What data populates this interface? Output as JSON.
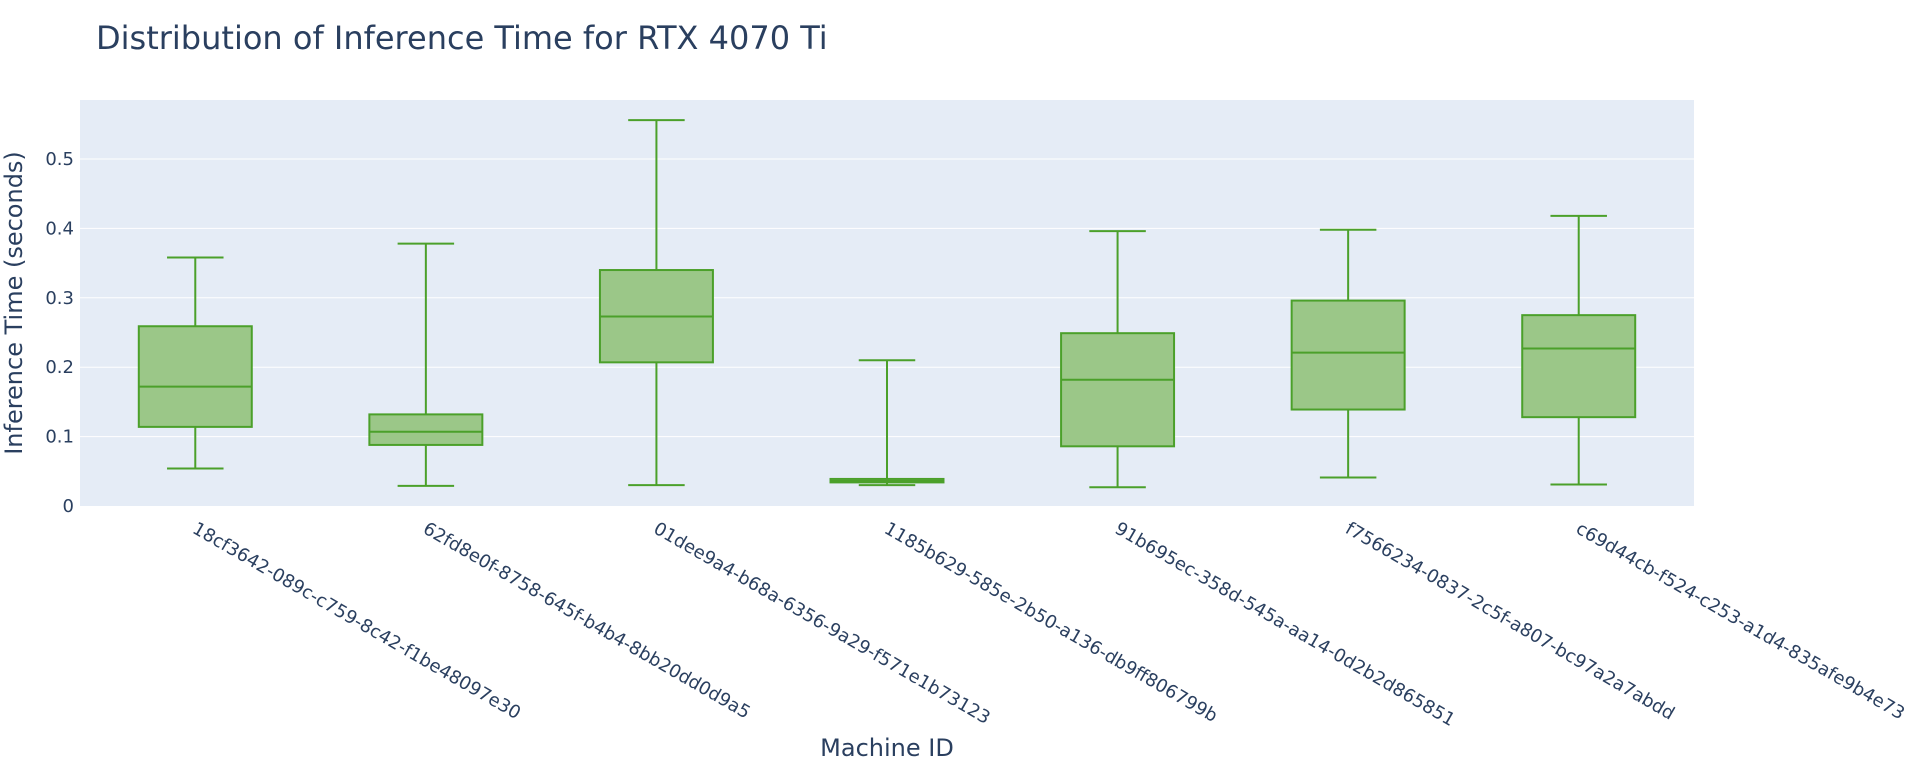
{
  "chart_data": {
    "type": "box",
    "title": "Distribution of Inference Time for RTX 4070 Ti",
    "xlabel": "Machine ID",
    "ylabel": "Inference Time (seconds)",
    "ylim": [
      0,
      0.585
    ],
    "yticks": [
      0,
      0.1,
      0.2,
      0.3,
      0.4,
      0.5
    ],
    "ytick_labels": [
      "0",
      "0.1",
      "0.2",
      "0.3",
      "0.4",
      "0.5"
    ],
    "grid": true,
    "legend": "none",
    "colors": {
      "plot_bg": "#e5ecf6",
      "box_fill": "#9bc788",
      "box_line": "#4ba02a",
      "text": "#2a3f5f"
    },
    "categories": [
      "18cf3642-089c-c759-8c42-f1be48097e30",
      "62fd8e0f-8758-645f-b4b4-8bb20dd0d9a5",
      "01dee9a4-b68a-6356-9a29-f571e1b73123",
      "1185b629-585e-2b50-a136-db9ff806799b",
      "91b695ec-358d-545a-aa14-0d2b2d865851",
      "f7566234-0837-2c5f-a807-bc97a2a7abdd",
      "c69d44cb-f524-c253-a1d4-835afe9b4e73"
    ],
    "boxes": [
      {
        "min": 0.054,
        "q1": 0.114,
        "median": 0.172,
        "q3": 0.259,
        "max": 0.358
      },
      {
        "min": 0.029,
        "q1": 0.088,
        "median": 0.107,
        "q3": 0.132,
        "max": 0.378
      },
      {
        "min": 0.03,
        "q1": 0.207,
        "median": 0.273,
        "q3": 0.34,
        "max": 0.556
      },
      {
        "min": 0.03,
        "q1": 0.034,
        "median": 0.036,
        "q3": 0.039,
        "max": 0.21
      },
      {
        "min": 0.027,
        "q1": 0.086,
        "median": 0.182,
        "q3": 0.249,
        "max": 0.396
      },
      {
        "min": 0.041,
        "q1": 0.139,
        "median": 0.221,
        "q3": 0.296,
        "max": 0.398
      },
      {
        "min": 0.031,
        "q1": 0.128,
        "median": 0.227,
        "q3": 0.275,
        "max": 0.418
      }
    ]
  }
}
